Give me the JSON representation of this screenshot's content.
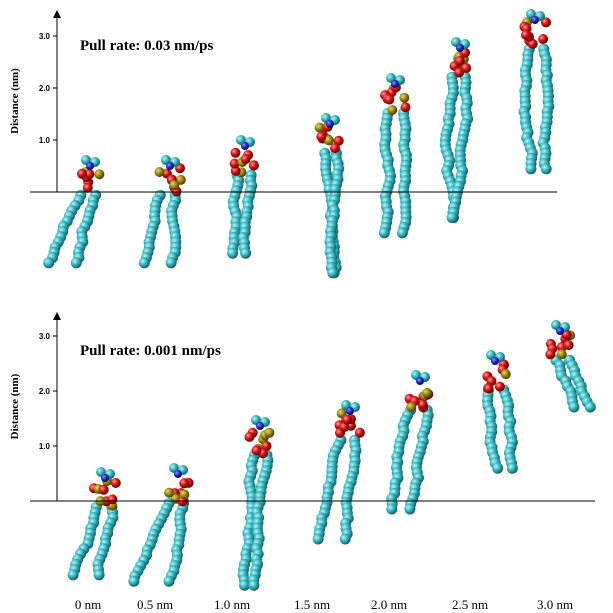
{
  "panels": [
    {
      "title": "Pull rate: 0.03 nm/ps",
      "y_axis_label": "Distance (nm)",
      "yticks": [
        "1.0",
        "2.0",
        "3.0"
      ]
    },
    {
      "title": "Pull rate: 0.001 nm/ps",
      "y_axis_label": "Distance (nm)",
      "yticks": [
        "1.0",
        "2.0",
        "3.0"
      ]
    }
  ],
  "x_labels": [
    "0 nm",
    "0.5 nm",
    "1.0 nm",
    "1.5 nm",
    "2.0 nm",
    "2.5 nm",
    "3.0 nm"
  ]
}
